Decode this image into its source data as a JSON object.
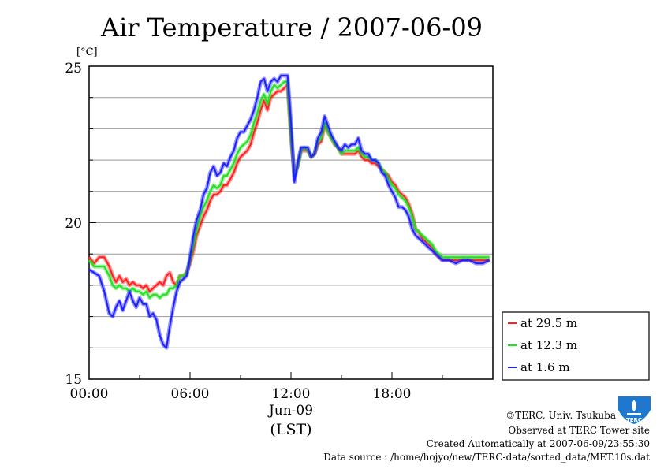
{
  "chart_data": {
    "type": "line",
    "title": "Air Temperature / 2007-06-09",
    "ylabel": "[°C]",
    "xlabel": "(LST)",
    "date_label": "Jun-09",
    "ylim": [
      15,
      25
    ],
    "xlim": [
      0,
      24
    ],
    "y_ticks": [
      "15",
      "20",
      "25"
    ],
    "x_ticks": [
      "00:00",
      "06:00",
      "12:00",
      "18:00"
    ],
    "grid": "horizontal",
    "legend_position": "bottom-right",
    "series": [
      {
        "name": "at 29.5 m",
        "color": "#ff2020",
        "x": [
          0,
          0.3,
          0.6,
          0.9,
          1.2,
          1.4,
          1.6,
          1.8,
          2.0,
          2.2,
          2.4,
          2.6,
          2.8,
          3.0,
          3.2,
          3.4,
          3.6,
          3.8,
          4.0,
          4.2,
          4.4,
          4.6,
          4.8,
          5.0,
          5.2,
          5.4,
          5.6,
          5.8,
          6.0,
          6.2,
          6.4,
          6.6,
          6.8,
          7.0,
          7.2,
          7.4,
          7.6,
          7.8,
          8.0,
          8.2,
          8.4,
          8.6,
          8.8,
          9.0,
          9.2,
          9.4,
          9.6,
          9.8,
          10.0,
          10.2,
          10.4,
          10.6,
          10.8,
          11.0,
          11.2,
          11.4,
          11.6,
          11.8,
          12.0,
          12.2,
          12.4,
          12.6,
          12.8,
          13.0,
          13.2,
          13.4,
          13.6,
          13.8,
          14.0,
          14.2,
          14.4,
          14.6,
          14.8,
          15.0,
          15.2,
          15.4,
          15.6,
          15.8,
          16.0,
          16.2,
          16.4,
          16.6,
          16.8,
          17.0,
          17.2,
          17.4,
          17.6,
          17.8,
          18.0,
          18.2,
          18.4,
          18.6,
          18.8,
          19.0,
          19.2,
          19.4,
          19.6,
          19.8,
          20.0,
          20.2,
          20.4,
          20.6,
          20.8,
          21.0,
          21.4,
          21.8,
          22.2,
          22.6,
          23.0,
          23.4,
          23.8
        ],
        "values": [
          18.9,
          18.7,
          18.9,
          18.9,
          18.6,
          18.3,
          18.1,
          18.3,
          18.1,
          18.2,
          18.0,
          18.1,
          18.0,
          18.0,
          17.9,
          18.0,
          17.8,
          17.9,
          18.0,
          18.1,
          18.0,
          18.3,
          18.4,
          18.1,
          18.0,
          18.3,
          18.3,
          18.4,
          18.7,
          19.1,
          19.6,
          19.9,
          20.2,
          20.4,
          20.7,
          20.9,
          20.9,
          21.0,
          21.2,
          21.2,
          21.4,
          21.6,
          21.9,
          22.1,
          22.2,
          22.3,
          22.5,
          22.9,
          23.2,
          23.6,
          23.9,
          23.6,
          24.0,
          24.1,
          24.2,
          24.2,
          24.3,
          24.4,
          22.7,
          21.6,
          21.8,
          22.3,
          22.3,
          22.3,
          22.1,
          22.2,
          22.5,
          22.6,
          23.1,
          22.9,
          22.7,
          22.5,
          22.4,
          22.2,
          22.2,
          22.2,
          22.2,
          22.2,
          22.3,
          22.1,
          22.0,
          22.0,
          21.9,
          21.9,
          21.8,
          21.7,
          21.6,
          21.5,
          21.3,
          21.2,
          21.0,
          20.9,
          20.8,
          20.6,
          20.3,
          19.8,
          19.7,
          19.5,
          19.4,
          19.3,
          19.2,
          19.0,
          18.9,
          18.8,
          18.8,
          18.8,
          18.8,
          18.8,
          18.8,
          18.8,
          18.8
        ]
      },
      {
        "name": "at 12.3 m",
        "color": "#20e020",
        "x": [
          0,
          0.3,
          0.6,
          0.9,
          1.2,
          1.4,
          1.6,
          1.8,
          2.0,
          2.2,
          2.4,
          2.6,
          2.8,
          3.0,
          3.2,
          3.4,
          3.6,
          3.8,
          4.0,
          4.2,
          4.4,
          4.6,
          4.8,
          5.0,
          5.2,
          5.4,
          5.6,
          5.8,
          6.0,
          6.2,
          6.4,
          6.6,
          6.8,
          7.0,
          7.2,
          7.4,
          7.6,
          7.8,
          8.0,
          8.2,
          8.4,
          8.6,
          8.8,
          9.0,
          9.2,
          9.4,
          9.6,
          9.8,
          10.0,
          10.2,
          10.4,
          10.6,
          10.8,
          11.0,
          11.2,
          11.4,
          11.6,
          11.8,
          12.0,
          12.2,
          12.4,
          12.6,
          12.8,
          13.0,
          13.2,
          13.4,
          13.6,
          13.8,
          14.0,
          14.2,
          14.4,
          14.6,
          14.8,
          15.0,
          15.2,
          15.4,
          15.6,
          15.8,
          16.0,
          16.2,
          16.4,
          16.6,
          16.8,
          17.0,
          17.2,
          17.4,
          17.6,
          17.8,
          18.0,
          18.2,
          18.4,
          18.6,
          18.8,
          19.0,
          19.2,
          19.4,
          19.6,
          19.8,
          20.0,
          20.2,
          20.4,
          20.6,
          20.8,
          21.0,
          21.4,
          21.8,
          22.2,
          22.6,
          23.0,
          23.4,
          23.8
        ],
        "values": [
          18.8,
          18.6,
          18.6,
          18.6,
          18.3,
          18.0,
          17.9,
          18.0,
          17.9,
          17.9,
          17.8,
          17.9,
          17.8,
          17.8,
          17.7,
          17.8,
          17.6,
          17.7,
          17.7,
          17.6,
          17.7,
          17.7,
          17.9,
          17.9,
          18.0,
          18.3,
          18.3,
          18.4,
          18.8,
          19.3,
          19.8,
          20.2,
          20.5,
          20.7,
          21.0,
          21.2,
          21.1,
          21.2,
          21.5,
          21.5,
          21.7,
          21.9,
          22.2,
          22.4,
          22.5,
          22.6,
          22.8,
          23.2,
          23.5,
          23.9,
          24.1,
          23.8,
          24.2,
          24.4,
          24.3,
          24.4,
          24.5,
          24.5,
          22.8,
          21.5,
          21.8,
          22.3,
          22.4,
          22.3,
          22.1,
          22.2,
          22.6,
          22.7,
          23.2,
          22.9,
          22.7,
          22.5,
          22.4,
          22.2,
          22.3,
          22.3,
          22.3,
          22.3,
          22.4,
          22.2,
          22.1,
          22.1,
          22.0,
          22.0,
          21.9,
          21.7,
          21.6,
          21.4,
          21.2,
          21.1,
          20.9,
          20.8,
          20.7,
          20.5,
          20.2,
          19.8,
          19.7,
          19.6,
          19.5,
          19.4,
          19.3,
          19.1,
          19.0,
          18.9,
          18.9,
          18.9,
          18.9,
          18.9,
          18.9,
          18.9,
          18.9
        ]
      },
      {
        "name": "at 1.6 m",
        "color": "#2020ff",
        "x": [
          0,
          0.3,
          0.6,
          0.9,
          1.2,
          1.4,
          1.6,
          1.8,
          2.0,
          2.2,
          2.4,
          2.6,
          2.8,
          3.0,
          3.2,
          3.4,
          3.6,
          3.8,
          4.0,
          4.2,
          4.4,
          4.6,
          4.8,
          5.0,
          5.2,
          5.4,
          5.6,
          5.8,
          6.0,
          6.2,
          6.4,
          6.6,
          6.8,
          7.0,
          7.2,
          7.4,
          7.6,
          7.8,
          8.0,
          8.2,
          8.4,
          8.6,
          8.8,
          9.0,
          9.2,
          9.4,
          9.6,
          9.8,
          10.0,
          10.2,
          10.4,
          10.6,
          10.8,
          11.0,
          11.2,
          11.4,
          11.6,
          11.8,
          12.0,
          12.2,
          12.4,
          12.6,
          12.8,
          13.0,
          13.2,
          13.4,
          13.6,
          13.8,
          14.0,
          14.2,
          14.4,
          14.6,
          14.8,
          15.0,
          15.2,
          15.4,
          15.6,
          15.8,
          16.0,
          16.2,
          16.4,
          16.6,
          16.8,
          17.0,
          17.2,
          17.4,
          17.6,
          17.8,
          18.0,
          18.2,
          18.4,
          18.6,
          18.8,
          19.0,
          19.2,
          19.4,
          19.6,
          19.8,
          20.0,
          20.2,
          20.4,
          20.6,
          20.8,
          21.0,
          21.4,
          21.8,
          22.2,
          22.6,
          23.0,
          23.4,
          23.8
        ],
        "values": [
          18.5,
          18.4,
          18.3,
          17.8,
          17.1,
          17.0,
          17.3,
          17.5,
          17.2,
          17.5,
          17.8,
          17.5,
          17.3,
          17.6,
          17.4,
          17.4,
          17.0,
          17.1,
          16.9,
          16.4,
          16.1,
          16.0,
          16.7,
          17.3,
          17.8,
          18.1,
          18.2,
          18.3,
          18.9,
          19.6,
          20.1,
          20.4,
          20.9,
          21.1,
          21.6,
          21.8,
          21.5,
          21.6,
          21.9,
          21.8,
          22.1,
          22.3,
          22.7,
          22.9,
          22.9,
          23.1,
          23.3,
          23.6,
          24.0,
          24.5,
          24.6,
          24.2,
          24.5,
          24.6,
          24.5,
          24.7,
          24.7,
          24.7,
          23.2,
          21.3,
          21.9,
          22.4,
          22.4,
          22.4,
          22.1,
          22.2,
          22.7,
          22.9,
          23.4,
          23.1,
          22.8,
          22.6,
          22.4,
          22.3,
          22.5,
          22.4,
          22.5,
          22.5,
          22.7,
          22.3,
          22.2,
          22.2,
          22.0,
          22.0,
          21.9,
          21.6,
          21.5,
          21.2,
          21.0,
          20.8,
          20.5,
          20.5,
          20.4,
          20.2,
          19.8,
          19.6,
          19.5,
          19.4,
          19.3,
          19.2,
          19.1,
          19.0,
          18.9,
          18.8,
          18.8,
          18.7,
          18.8,
          18.8,
          18.7,
          18.7,
          18.8
        ]
      }
    ]
  },
  "footer": {
    "copyright": "©TERC, Univ. Tsukuba",
    "observed": "Observed at TERC Tower site",
    "created": "Created Automatically at 2007-06-09/23:55:30",
    "source": "Data source : /home/hojyo/new/TERC-data/sorted_data/MET.10s.dat",
    "logo_text": "TERC"
  }
}
